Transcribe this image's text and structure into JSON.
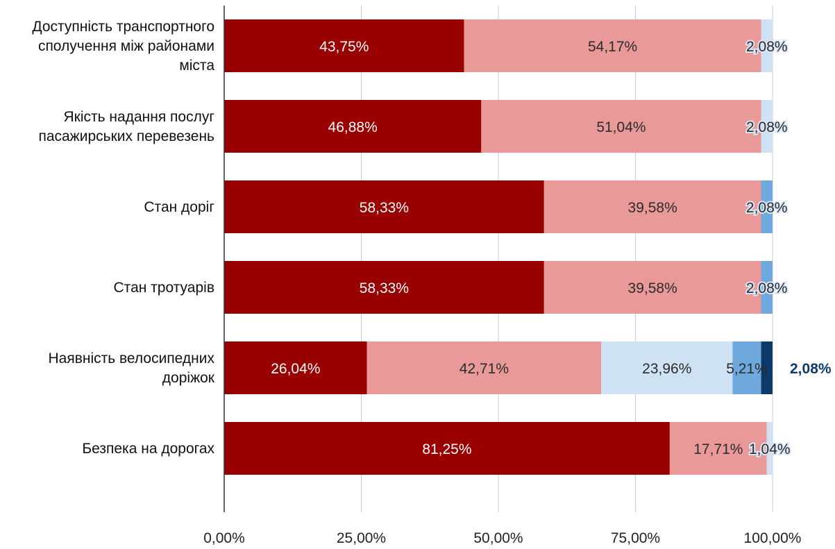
{
  "chart_data": {
    "type": "bar",
    "orientation": "horizontal",
    "stacked": true,
    "title": "",
    "xlabel": "",
    "ylabel": "",
    "xlim": [
      0,
      100
    ],
    "grid": true,
    "legend": "none",
    "categories": [
      [
        "Доступність транспортного",
        "сполучення між районами",
        "міста"
      ],
      [
        "Якість надання послуг",
        "пасажирських перевезень"
      ],
      [
        "Стан доріг"
      ],
      [
        "Стан тротуарів"
      ],
      [
        "Наявність велосипедних",
        "доріжок"
      ],
      [
        "Безпека на дорогах"
      ]
    ],
    "series": [
      {
        "color": "#990000",
        "values": [
          43.75,
          46.88,
          58.33,
          58.33,
          26.04,
          81.25
        ]
      },
      {
        "color": "#ea9999",
        "values": [
          54.17,
          51.04,
          39.58,
          39.58,
          42.71,
          17.71
        ]
      },
      {
        "color": "#cfe2f3",
        "values": [
          2.08,
          2.08,
          0,
          0,
          23.96,
          1.04
        ]
      },
      {
        "color": "#6fa8dc",
        "values": [
          0,
          0,
          2.08,
          2.08,
          5.21,
          0
        ]
      },
      {
        "color": "#0b3a6b",
        "values": [
          0,
          0,
          0,
          0,
          2.08,
          0
        ]
      }
    ],
    "value_labels": [
      [
        "43,75%",
        "54,17%",
        "2,08%",
        "",
        ""
      ],
      [
        "46,88%",
        "51,04%",
        "2,08%",
        "",
        ""
      ],
      [
        "58,33%",
        "39,58%",
        "",
        "2,08%",
        ""
      ],
      [
        "58,33%",
        "39,58%",
        "",
        "2,08%",
        ""
      ],
      [
        "26,04%",
        "42,71%",
        "23,96%",
        "5,21%",
        "2,08%"
      ],
      [
        "81,25%",
        "17,71%",
        "1,04%",
        "",
        ""
      ]
    ],
    "x_ticks": [
      0,
      25,
      50,
      75,
      100
    ],
    "x_tick_labels": [
      "0,00%",
      "25,00%",
      "50,00%",
      "75,00%",
      "100,00%"
    ]
  }
}
